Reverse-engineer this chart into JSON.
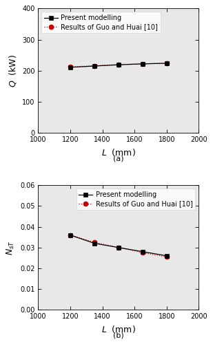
{
  "L_values": [
    1200,
    1350,
    1500,
    1650,
    1800
  ],
  "Q_present": [
    211,
    215,
    219,
    222,
    224
  ],
  "Q_guo": [
    212,
    216,
    220,
    222,
    224
  ],
  "NsT_present": [
    0.036,
    0.032,
    0.03,
    0.028,
    0.026
  ],
  "NsT_guo": [
    0.036,
    0.0325,
    0.03,
    0.0275,
    0.0255
  ],
  "xlim": [
    1000,
    2000
  ],
  "xticks": [
    1000,
    1200,
    1400,
    1600,
    1800,
    2000
  ],
  "Q_ylim": [
    0,
    400
  ],
  "Q_yticks": [
    0,
    100,
    200,
    300,
    400
  ],
  "NsT_ylim": [
    0.0,
    0.06
  ],
  "NsT_yticks": [
    0.0,
    0.01,
    0.02,
    0.03,
    0.04,
    0.05,
    0.06
  ],
  "xlabel": "L  (mm)",
  "Q_ylabel": "Q  (kW)",
  "legend_present": "Present modelling",
  "legend_guo": "Results of Guo and Huai [10]",
  "color_present": "#000000",
  "color_guo": "#cc0000",
  "label_a": "(a)",
  "label_b": "(b)",
  "bg_color": "#e8e8e8",
  "fig_width": 3.09,
  "fig_height": 5.0,
  "dpi": 100,
  "tick_labelsize": 7,
  "axis_labelsize": 9,
  "legend_fontsize": 7
}
